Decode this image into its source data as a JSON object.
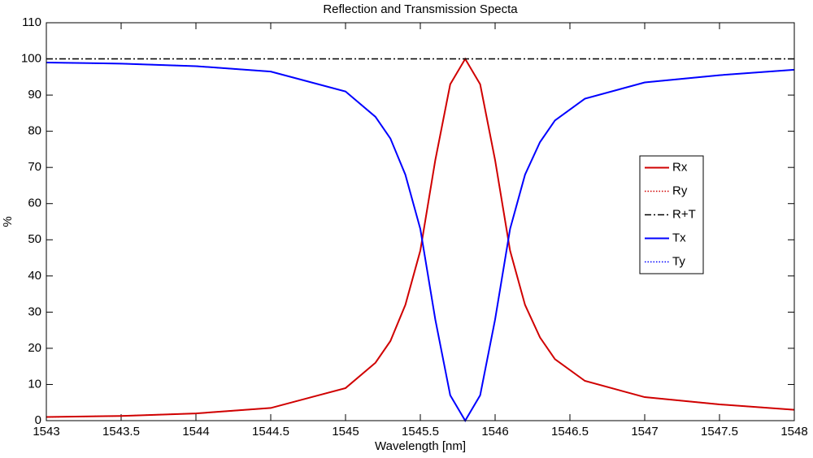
{
  "chart_data": {
    "type": "line",
    "title": "Reflection and Transmission Specta",
    "x_label": "Wavelength [nm]",
    "y_label": "%",
    "x": [
      1543,
      1543.5,
      1544,
      1544.5,
      1545,
      1545.2,
      1545.3,
      1545.4,
      1545.5,
      1545.6,
      1545.7,
      1545.8,
      1545.9,
      1546,
      1546.1,
      1546.2,
      1546.3,
      1546.4,
      1546.6,
      1547,
      1547.5,
      1548
    ],
    "series": [
      {
        "name": "Rx",
        "color": "#d00000",
        "style": "solid",
        "values": [
          1,
          1.3,
          2,
          3.5,
          9,
          16,
          22,
          32,
          47,
          72,
          93,
          100,
          93,
          72,
          47,
          32,
          23,
          17,
          11,
          6.5,
          4.5,
          3
        ]
      },
      {
        "name": "Ry",
        "color": "#d00000",
        "style": "dotted",
        "values": [
          1,
          1.3,
          2,
          3.5,
          9,
          16,
          22,
          32,
          47,
          72,
          93,
          100,
          93,
          72,
          47,
          32,
          23,
          17,
          11,
          6.5,
          4.5,
          3
        ]
      },
      {
        "name": "R+T",
        "color": "#000000",
        "style": "dashdot",
        "values": [
          100,
          100,
          100,
          100,
          100,
          100,
          100,
          100,
          100,
          100,
          100,
          100,
          100,
          100,
          100,
          100,
          100,
          100,
          100,
          100,
          100,
          100
        ]
      },
      {
        "name": "Tx",
        "color": "#0000ff",
        "style": "solid",
        "values": [
          99,
          98.7,
          98,
          96.5,
          91,
          84,
          78,
          68,
          53,
          28,
          7,
          0,
          7,
          28,
          53,
          68,
          77,
          83,
          89,
          93.5,
          95.5,
          97
        ]
      },
      {
        "name": "Ty",
        "color": "#0000ff",
        "style": "dotted",
        "values": [
          99,
          98.7,
          98,
          96.5,
          91,
          84,
          78,
          68,
          53,
          28,
          7,
          0,
          7,
          28,
          53,
          68,
          77,
          83,
          89,
          93.5,
          95.5,
          97
        ]
      }
    ],
    "xlim": [
      1543,
      1548
    ],
    "xticks": [
      1543,
      1543.5,
      1544,
      1544.5,
      1545,
      1545.5,
      1546,
      1546.5,
      1547,
      1547.5,
      1548
    ],
    "ylim": [
      0,
      110
    ],
    "yticks": [
      0,
      10,
      20,
      30,
      40,
      50,
      60,
      70,
      80,
      90,
      100,
      110
    ],
    "legend": "right"
  }
}
